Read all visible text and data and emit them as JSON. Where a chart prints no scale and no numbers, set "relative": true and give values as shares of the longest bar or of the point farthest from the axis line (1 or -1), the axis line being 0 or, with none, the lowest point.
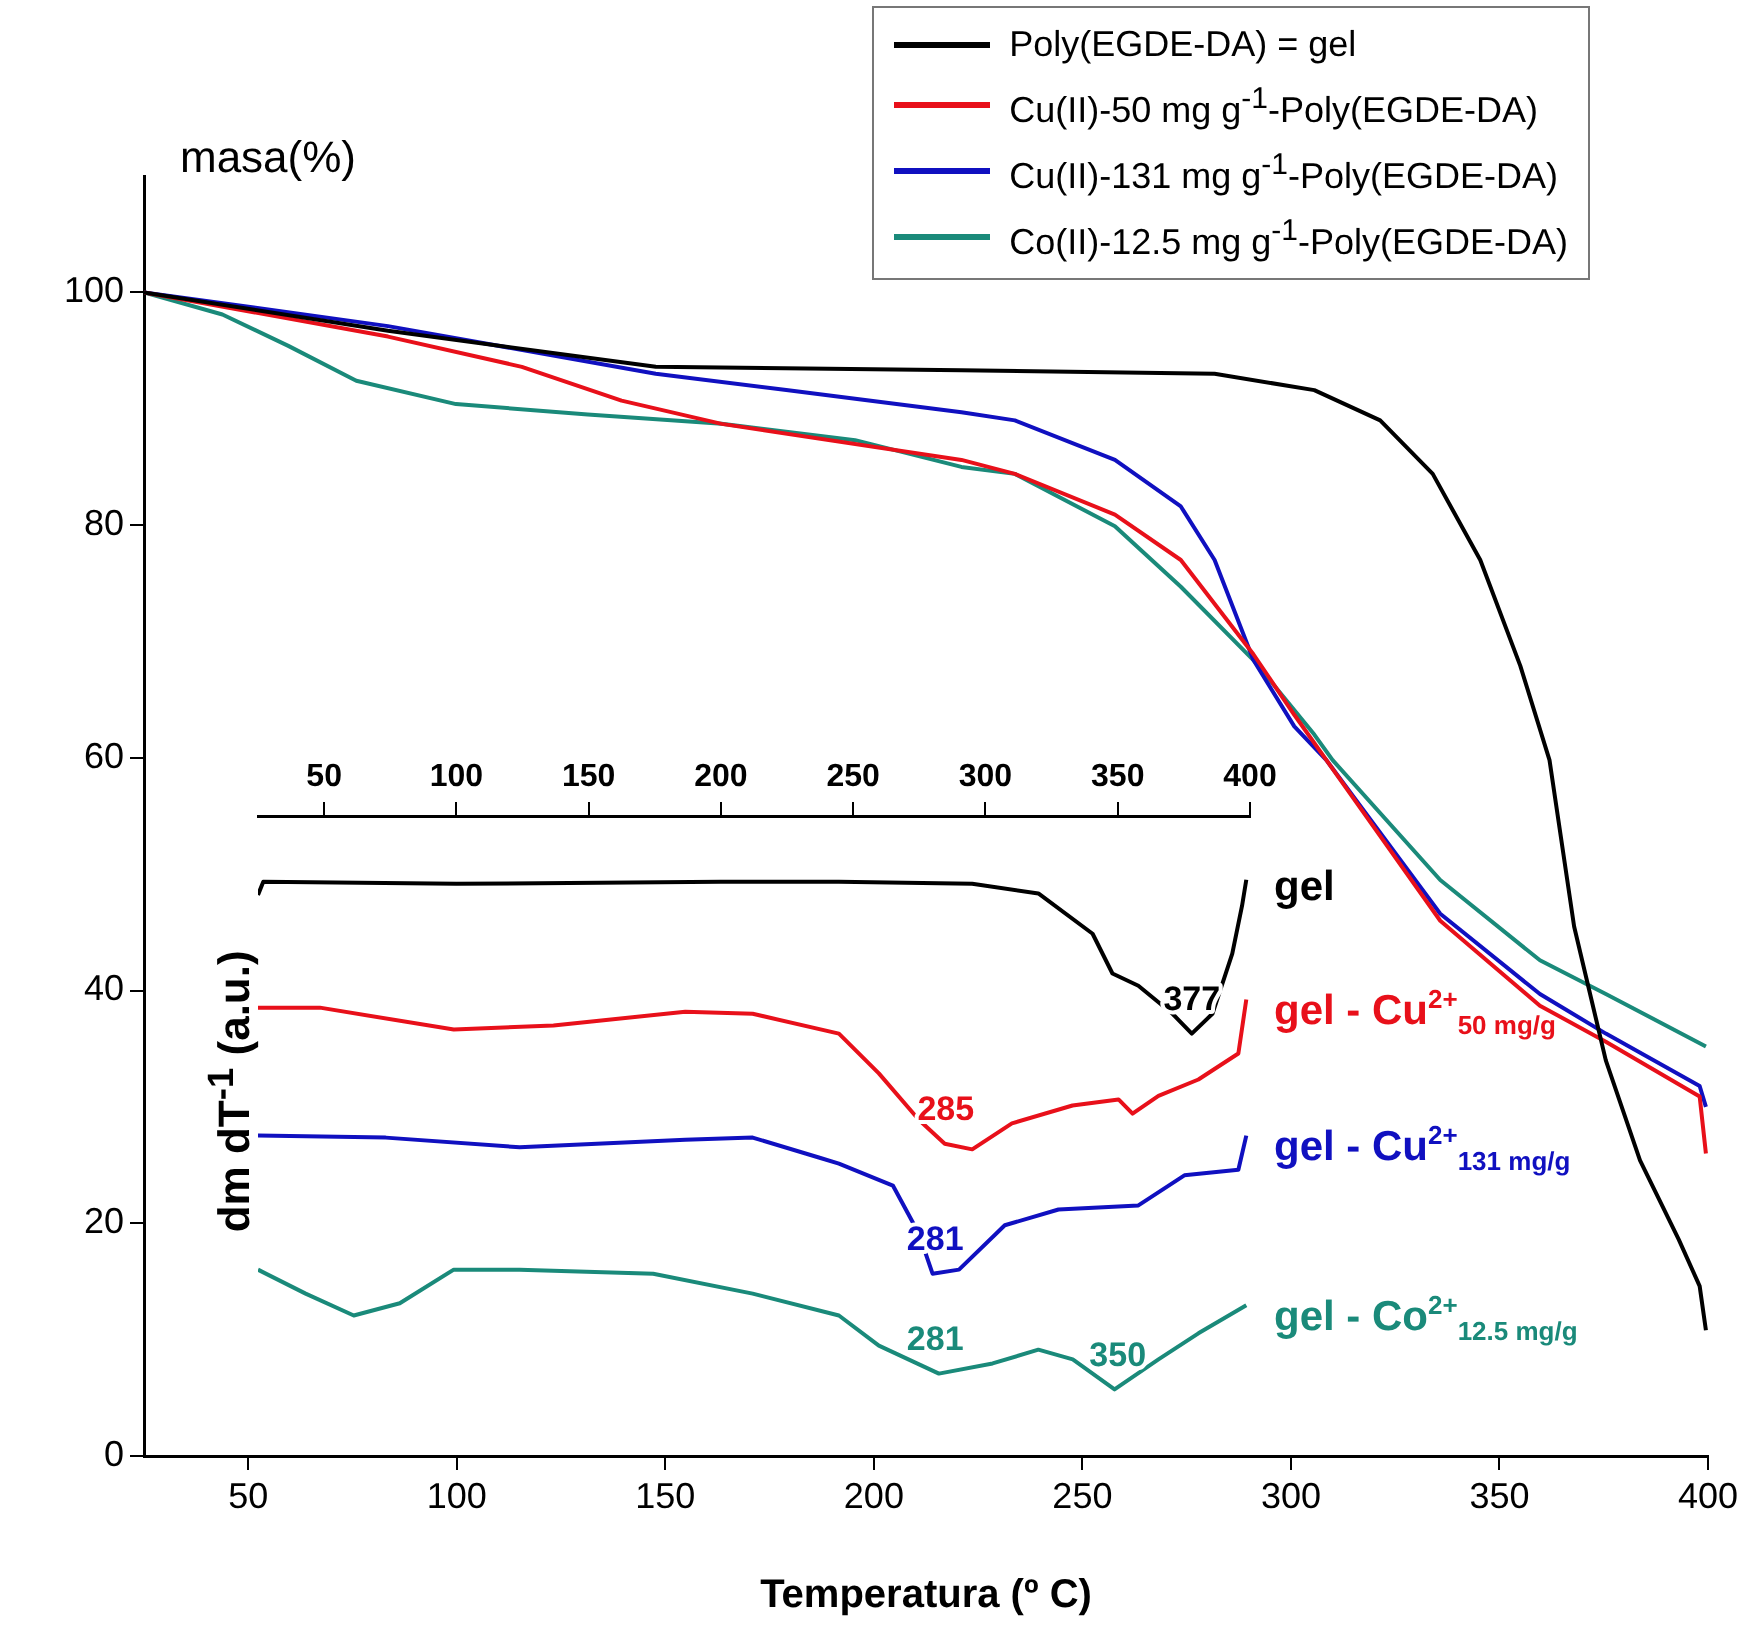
{
  "chart_data": [
    {
      "type": "line",
      "xlabel": "Temperatura (º C)",
      "ylabel": "masa(%)",
      "xlim": [
        25,
        400
      ],
      "xticks": [
        50,
        100,
        150,
        200,
        250,
        300,
        350,
        400
      ],
      "ylim": [
        0,
        110
      ],
      "yticks": [
        0,
        20,
        40,
        60,
        80,
        100
      ],
      "legend": "top right",
      "marker": "none",
      "series": [
        {
          "name": "Poly(EGDE-DA) = gel",
          "color": "#000000",
          "x": [
            25,
            83.5,
            147.7,
            221,
            281.7,
            305.6,
            321.4,
            334,
            345.4,
            355,
            362,
            367.9,
            375.5,
            383.7,
            393,
            398,
            399.5
          ],
          "values": [
            100,
            96.7,
            93.6,
            93.3,
            93.0,
            91.6,
            89,
            84.4,
            77,
            67.9,
            59.8,
            45.5,
            34,
            25.4,
            18.6,
            14.6,
            10.8
          ]
        },
        {
          "name": "Cu(II)-50 mg g$^{-1}$-Poly(EGDE-DA)",
          "color": "#e8101a",
          "x": [
            25,
            83.5,
            115.6,
            139.5,
            163.5,
            221,
            233.8,
            257.8,
            273.6,
            291,
            300.8,
            335.8,
            359.7,
            375.5,
            398,
            399.5
          ],
          "values": [
            100,
            96.2,
            93.6,
            90.7,
            88.7,
            85.6,
            84.4,
            80.9,
            77,
            68.9,
            63.7,
            46,
            38.7,
            35.6,
            30.9,
            26
          ]
        },
        {
          "name": "Cu(II)-131 mg g$^{-1}$-Poly(EGDE-DA)",
          "color": "#1010c0",
          "x": [
            25,
            83.5,
            147.7,
            179,
            221,
            233.8,
            257.8,
            273.6,
            281.7,
            291,
            300.8,
            308.5,
            335.8,
            359.7,
            375.5,
            398,
            399.5
          ],
          "values": [
            100,
            97.1,
            93,
            91.6,
            89.7,
            89,
            85.6,
            81.6,
            77,
            68.4,
            62.7,
            59.8,
            46.6,
            39.7,
            36.3,
            31.8,
            30
          ]
        },
        {
          "name": "Co(II)-12.5 mg g$^{-1}$-Poly(EGDE-DA)",
          "color": "#1a8a7a",
          "x": [
            25,
            43.8,
            59.6,
            75.9,
            99.8,
            131.4,
            163.5,
            195.5,
            221,
            233.8,
            257.8,
            273.6,
            291,
            305.6,
            310,
            335.8,
            359.7,
            375.5,
            399.5
          ],
          "values": [
            100,
            98.1,
            95.4,
            92.4,
            90.4,
            89.5,
            88.7,
            87.3,
            85,
            84.4,
            79.9,
            74.7,
            68.4,
            62,
            59.8,
            49.5,
            42.6,
            39.7,
            35.2
          ]
        }
      ]
    },
    {
      "type": "line",
      "ylabel": "dm dT$^{-1}$ (a.u.)",
      "relative": true,
      "xlim": [
        25,
        400
      ],
      "xticks": [
        50,
        100,
        150,
        200,
        250,
        300,
        350,
        400
      ],
      "tick_labels": "x",
      "marker": "none",
      "series": [
        {
          "name": "gel",
          "color": "#000000",
          "x": [
            25,
            27,
            100,
            200,
            244.6,
            295,
            320,
            340.5,
            348,
            357.8,
            370.7,
            378,
            385.8,
            393.3,
            397,
            398.6
          ],
          "values": [
            0.97,
            0.996,
            0.992,
            0.996,
            0.996,
            0.992,
            0.973,
            0.894,
            0.816,
            0.792,
            0.737,
            0.698,
            0.737,
            0.855,
            0.949,
            1.0
          ]
        },
        {
          "name": "gel - Cu$^{2+}$$_{50 mg/g}$",
          "color": "#e8101a",
          "x": [
            25,
            48.4,
            99,
            136.7,
            186.5,
            212,
            244.6,
            259.7,
            274.8,
            284.6,
            295,
            310,
            332.9,
            350.3,
            355.6,
            365.4,
            380.5,
            395.6,
            398.6
          ],
          "values": [
            0.749,
            0.749,
            0.706,
            0.714,
            0.741,
            0.737,
            0.698,
            0.62,
            0.529,
            0.482,
            0.471,
            0.522,
            0.557,
            0.569,
            0.541,
            0.576,
            0.608,
            0.659,
            0.765
          ]
        },
        {
          "name": "gel - Cu$^{2+}$$_{131 mg/g}$",
          "color": "#1010c0",
          "x": [
            25,
            73.3,
            123.9,
            186.5,
            212,
            237,
            244.6,
            265,
            274.8,
            280,
            290,
            307.3,
            327.6,
            357.8,
            375.2,
            395.6,
            398.6
          ],
          "values": [
            0.498,
            0.494,
            0.475,
            0.49,
            0.494,
            0.455,
            0.443,
            0.4,
            0.306,
            0.227,
            0.235,
            0.322,
            0.353,
            0.361,
            0.42,
            0.431,
            0.498
          ]
        },
        {
          "name": "gel - Co$^{2+}$$_{12.5 mg/g}$",
          "color": "#1a8a7a",
          "x": [
            25,
            43,
            61.2,
            78.6,
            99,
            123.9,
            174.4,
            212,
            244.6,
            259.7,
            282.4,
            302.7,
            320,
            333,
            348.8,
            365.4,
            380.5,
            398.6
          ],
          "values": [
            0.235,
            0.188,
            0.145,
            0.169,
            0.235,
            0.235,
            0.227,
            0.188,
            0.145,
            0.086,
            0.031,
            0.051,
            0.078,
            0.059,
            0,
            0.059,
            0.11,
            0.165
          ]
        }
      ],
      "annotations": [
        {
          "text": "377",
          "x": 378,
          "y": 0.698
        },
        {
          "text": "285",
          "x": 285,
          "y": 0.482
        },
        {
          "text": "281",
          "x": 281,
          "y": 0.227
        },
        {
          "text": "281",
          "x": 281,
          "y": 0.031
        },
        {
          "text": "350",
          "x": 350,
          "y": 0
        }
      ]
    }
  ]
}
